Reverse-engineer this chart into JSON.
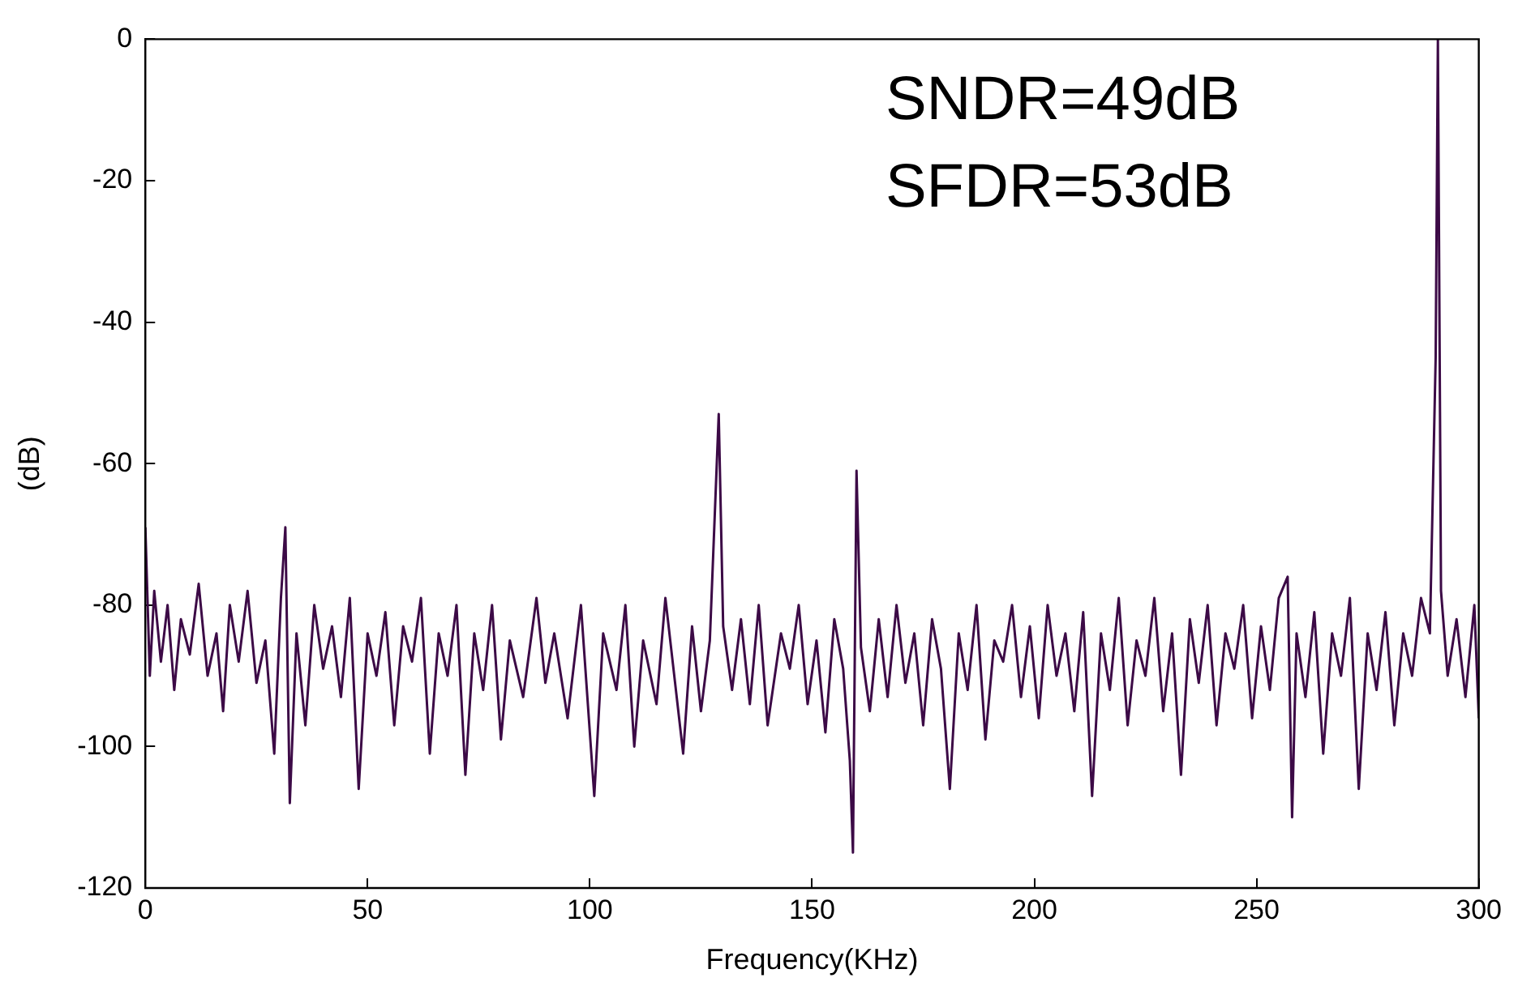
{
  "chart_data": {
    "type": "line",
    "xlabel": "Frequency(KHz)",
    "ylabel": "(dB)",
    "annotations": [
      "SNDR=49dB",
      "SFDR=53dB"
    ],
    "xlim": [
      0,
      300
    ],
    "xticks": [
      0,
      50,
      100,
      150,
      200,
      250,
      300
    ],
    "ylim": [
      -120,
      0
    ],
    "yticks": [
      -120,
      -100,
      -80,
      -60,
      -40,
      -20,
      0
    ],
    "grid": false,
    "legend": false,
    "marker": "none",
    "line_style": "solid",
    "series": [
      {
        "color": "#3c0a46",
        "x": [
          0,
          1,
          2,
          3.5,
          5,
          6.5,
          8,
          10,
          12,
          14,
          16,
          17.5,
          19,
          21,
          23,
          25,
          27,
          29,
          30.5,
          31.5,
          32.5,
          34,
          36,
          38,
          40,
          42,
          44,
          46,
          48,
          50,
          52,
          54,
          56,
          58,
          60,
          62,
          64,
          66,
          68,
          70,
          72,
          74,
          76,
          78,
          80,
          82,
          85,
          88,
          90,
          92,
          95,
          98,
          101,
          103,
          106,
          108,
          110,
          112,
          115,
          117,
          119,
          121,
          123,
          125,
          127,
          129,
          130,
          132,
          134,
          136,
          138,
          140,
          143,
          145,
          147,
          149,
          151,
          153,
          155,
          157,
          158.5,
          159.2,
          160,
          161,
          163,
          165,
          167,
          169,
          171,
          173,
          175,
          177,
          179,
          181,
          183,
          185,
          187,
          189,
          191,
          193,
          195,
          197,
          199,
          201,
          203,
          205,
          207,
          209,
          211,
          213,
          215,
          217,
          219,
          221,
          223,
          225,
          227,
          229,
          231,
          233,
          235,
          237,
          239,
          241,
          243,
          245,
          247,
          249,
          251,
          253,
          255,
          257,
          258,
          259,
          261,
          263,
          265,
          267,
          269,
          271,
          273,
          275,
          277,
          279,
          281,
          283,
          285,
          287,
          289,
          290.3,
          290.8,
          291.5,
          293,
          295,
          297,
          299,
          300
        ],
        "values": [
          -69,
          -90,
          -78,
          -88,
          -80,
          -92,
          -82,
          -87,
          -77,
          -90,
          -84,
          -95,
          -80,
          -88,
          -78,
          -91,
          -85,
          -101,
          -79,
          -69,
          -108,
          -84,
          -97,
          -80,
          -89,
          -83,
          -93,
          -79,
          -106,
          -84,
          -90,
          -81,
          -97,
          -83,
          -88,
          -79,
          -101,
          -84,
          -90,
          -80,
          -104,
          -84,
          -92,
          -80,
          -99,
          -85,
          -93,
          -79,
          -91,
          -84,
          -96,
          -80,
          -107,
          -84,
          -92,
          -80,
          -100,
          -85,
          -94,
          -79,
          -90,
          -101,
          -83,
          -95,
          -85,
          -53,
          -83,
          -92,
          -82,
          -94,
          -80,
          -97,
          -84,
          -89,
          -80,
          -94,
          -85,
          -98,
          -82,
          -89,
          -102,
          -115,
          -61,
          -86,
          -95,
          -82,
          -93,
          -80,
          -91,
          -84,
          -97,
          -82,
          -89,
          -106,
          -84,
          -92,
          -80,
          -99,
          -85,
          -88,
          -80,
          -93,
          -83,
          -96,
          -80,
          -90,
          -84,
          -95,
          -81,
          -107,
          -84,
          -92,
          -79,
          -97,
          -85,
          -90,
          -79,
          -95,
          -84,
          -104,
          -82,
          -91,
          -80,
          -97,
          -84,
          -89,
          -80,
          -96,
          -83,
          -92,
          -79,
          -76,
          -110,
          -84,
          -93,
          -81,
          -101,
          -84,
          -90,
          -79,
          -106,
          -84,
          -92,
          -81,
          -97,
          -84,
          -90,
          -79,
          -84,
          -45,
          0,
          -78,
          -90,
          -82,
          -93,
          -80,
          -96
        ]
      }
    ]
  }
}
